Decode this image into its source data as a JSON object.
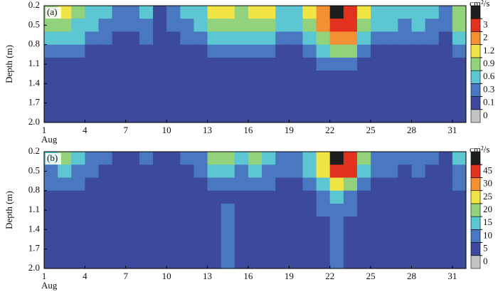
{
  "chart_data": [
    {
      "type": "heatmap",
      "panel_label": "(a)",
      "ylabel": "Depth (m)",
      "xlabel": "Aug",
      "xlim": [
        1,
        32
      ],
      "xticks": [
        1,
        4,
        7,
        10,
        13,
        16,
        19,
        22,
        25,
        28,
        31
      ],
      "ylim": [
        0.2,
        2.0
      ],
      "yticks": [
        0.2,
        0.5,
        0.8,
        1.1,
        1.4,
        1.7,
        {
          "value": 2,
          "label": "2.0"
        }
      ],
      "x": [
        1,
        2,
        3,
        4,
        5,
        6,
        7,
        8,
        9,
        10,
        11,
        12,
        13,
        14,
        15,
        16,
        17,
        18,
        19,
        20,
        21,
        22,
        23,
        24,
        25,
        26,
        27,
        28,
        29,
        30,
        31
      ],
      "y": [
        0.2,
        0.4,
        0.6,
        0.8,
        1.0,
        1.2
      ],
      "z": [
        [
          0.8,
          1.0,
          0.7,
          0.4,
          0.3,
          0.2,
          0.2,
          0.3,
          0.05,
          0.15,
          0.3,
          0.4,
          1.0,
          1.1,
          0.8,
          1.0,
          0.9,
          0.5,
          0.4,
          0.9,
          1.5,
          3.2,
          2.5,
          1.0,
          0.5,
          0.4,
          0.3,
          0.4,
          0.3,
          0.2,
          0.8
        ],
        [
          0.6,
          0.7,
          0.5,
          0.3,
          0.2,
          0.15,
          0.15,
          0.2,
          0.05,
          0.1,
          0.2,
          0.3,
          0.7,
          0.8,
          0.6,
          0.7,
          0.6,
          0.35,
          0.3,
          0.7,
          1.3,
          2.5,
          2.0,
          0.7,
          0.35,
          0.3,
          0.2,
          0.3,
          0.2,
          0.15,
          0.6
        ],
        [
          0.35,
          0.4,
          0.3,
          0.15,
          0.1,
          0.08,
          0.08,
          0.1,
          0.05,
          0.06,
          0.1,
          0.15,
          0.4,
          0.5,
          0.35,
          0.4,
          0.35,
          0.2,
          0.15,
          0.4,
          0.8,
          1.5,
          1.2,
          0.4,
          0.2,
          0.15,
          0.1,
          0.15,
          0.1,
          0.08,
          0.35
        ],
        [
          0.15,
          0.2,
          0.12,
          0.06,
          0.05,
          0.05,
          0.05,
          0.05,
          0.05,
          0.05,
          0.05,
          0.06,
          0.2,
          0.2,
          0.15,
          0.15,
          0.12,
          0.06,
          0.06,
          0.2,
          0.4,
          0.7,
          0.6,
          0.2,
          0.06,
          0.06,
          0.05,
          0.06,
          0.05,
          0.05,
          0.12
        ],
        [
          0.05,
          0.06,
          0.05,
          0.05,
          0.05,
          0.05,
          0.05,
          0.05,
          0.05,
          0.05,
          0.05,
          0.05,
          0.06,
          0.08,
          0.05,
          0.05,
          0.05,
          0.05,
          0.05,
          0.06,
          0.15,
          0.25,
          0.2,
          0.08,
          0.05,
          0.05,
          0.05,
          0.05,
          0.05,
          0.05,
          0.05
        ],
        [
          0.05,
          0.05,
          0.05,
          0.05,
          0.05,
          0.05,
          0.05,
          0.05,
          0.05,
          0.05,
          0.05,
          0.05,
          0.05,
          0.05,
          0.05,
          0.05,
          0.05,
          0.05,
          0.05,
          0.05,
          0.05,
          0.05,
          0.05,
          0.05,
          0.05,
          0.05,
          0.05,
          0.05,
          0.05,
          0.05,
          0.05
        ]
      ],
      "colorbar": {
        "title": "cm²/s",
        "levels": [
          0,
          0.1,
          0.3,
          0.6,
          0.9,
          1.2,
          2,
          3
        ],
        "colors": [
          "#c4c4c4",
          "#3b4a9a",
          "#4a78c0",
          "#5cc6d2",
          "#92d27c",
          "#f0e545",
          "#f39034",
          "#e2321f",
          "#1e1e1e"
        ]
      }
    },
    {
      "type": "heatmap",
      "panel_label": "(b)",
      "ylabel": "Depth (m)",
      "xlabel": "Aug",
      "xlim": [
        1,
        32
      ],
      "xticks": [
        1,
        4,
        7,
        10,
        13,
        16,
        19,
        22,
        25,
        28,
        31
      ],
      "ylim": [
        0.2,
        2.0
      ],
      "yticks": [
        0.2,
        0.5,
        0.8,
        1.1,
        1.4,
        1.7,
        {
          "value": 2,
          "label": "2.0"
        }
      ],
      "x": [
        1,
        2,
        3,
        4,
        5,
        6,
        7,
        8,
        9,
        10,
        11,
        12,
        13,
        14,
        15,
        16,
        17,
        18,
        19,
        20,
        21,
        22,
        23,
        24,
        25,
        26,
        27,
        28,
        29,
        30,
        31
      ],
      "y": [
        0.2,
        0.4,
        0.6,
        0.8,
        1.0,
        1.2
      ],
      "z": [
        [
          12,
          18,
          10,
          6,
          5,
          3,
          3,
          5,
          1,
          2,
          5,
          6,
          15,
          17,
          12,
          15,
          13,
          8,
          6,
          14,
          22,
          47,
          38,
          15,
          8,
          6,
          5,
          6,
          5,
          3,
          12
        ],
        [
          9,
          11,
          8,
          5,
          3,
          2,
          2,
          3,
          1,
          2,
          3,
          5,
          11,
          12,
          9,
          11,
          9,
          5,
          5,
          11,
          20,
          38,
          30,
          11,
          5,
          5,
          3,
          5,
          3,
          2,
          9
        ],
        [
          5,
          6,
          5,
          2,
          2,
          1,
          1,
          2,
          1,
          1,
          2,
          2,
          6,
          8,
          5,
          6,
          5,
          3,
          2,
          6,
          12,
          22,
          18,
          6,
          3,
          2,
          2,
          2,
          2,
          1,
          5
        ],
        [
          2,
          3,
          2,
          1,
          1,
          1,
          1,
          1,
          1,
          1,
          1,
          1,
          3,
          3,
          2,
          2,
          2,
          1,
          1,
          3,
          6,
          11,
          9,
          3,
          1,
          1,
          1,
          1,
          1,
          1,
          2
        ],
        [
          1,
          2,
          1,
          1,
          1,
          1,
          1,
          1,
          1,
          1,
          1,
          1,
          2,
          6,
          1,
          1,
          1,
          1,
          1,
          2,
          6,
          7,
          6,
          2,
          1,
          1,
          1,
          1,
          1,
          1,
          1
        ],
        [
          1,
          1,
          1,
          1,
          1,
          1,
          1,
          1,
          1,
          1,
          1,
          1,
          1,
          5,
          1,
          1,
          1,
          1,
          1,
          1,
          2,
          6,
          2,
          1,
          1,
          1,
          1,
          1,
          1,
          1,
          1
        ]
      ],
      "colorbar": {
        "title": "cm²/s",
        "levels": [
          0,
          5,
          10,
          15,
          20,
          25,
          30,
          45
        ],
        "colors": [
          "#c4c4c4",
          "#3b4a9a",
          "#4a78c0",
          "#5cc6d2",
          "#92d27c",
          "#f0e545",
          "#f39034",
          "#e2321f",
          "#1e1e1e"
        ]
      }
    }
  ]
}
